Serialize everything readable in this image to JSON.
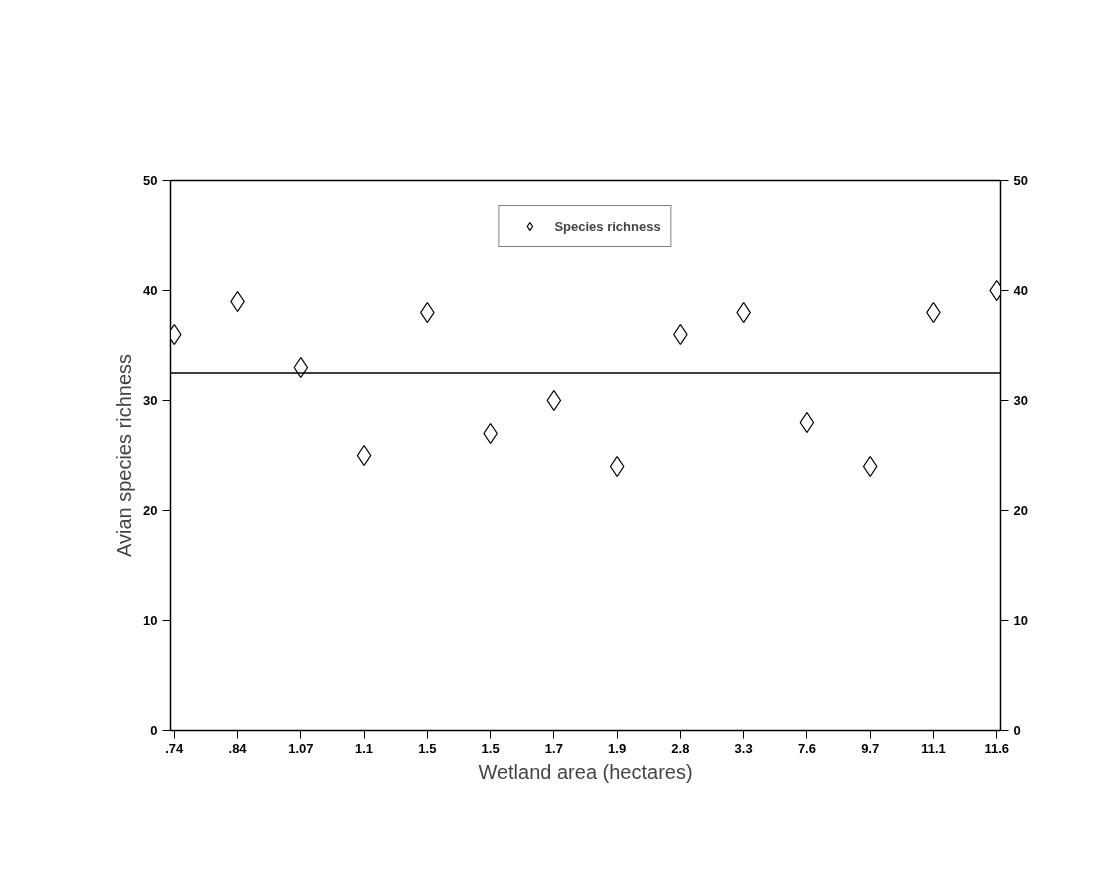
{
  "chart_data": {
    "type": "scatter",
    "xlabel": "Wetland area (hectares)",
    "ylabel": "Avian species richness",
    "categories": [
      ".74",
      ".84",
      "1.07",
      "1.1",
      "1.5",
      "1.5",
      "1.7",
      "1.9",
      "2.8",
      "3.3",
      "7.6",
      "9.7",
      "11.1",
      "11.6"
    ],
    "series": [
      {
        "name": "Species richness",
        "color": "#000000",
        "values": [
          36,
          39,
          33,
          25,
          38,
          27,
          30,
          24,
          36,
          38,
          28,
          24,
          38,
          40
        ]
      }
    ],
    "ylim": [
      0,
      50
    ],
    "yticks": [
      0,
      10,
      20,
      30,
      40,
      50
    ],
    "y2lim": [
      0,
      50
    ],
    "y2ticks": [
      0,
      10,
      20,
      30,
      40,
      50
    ],
    "ref_lines": [
      {
        "axis": "y",
        "value": 32.5,
        "color": "#000000"
      }
    ],
    "marker": "diamond",
    "legend": "top",
    "grid": false
  }
}
